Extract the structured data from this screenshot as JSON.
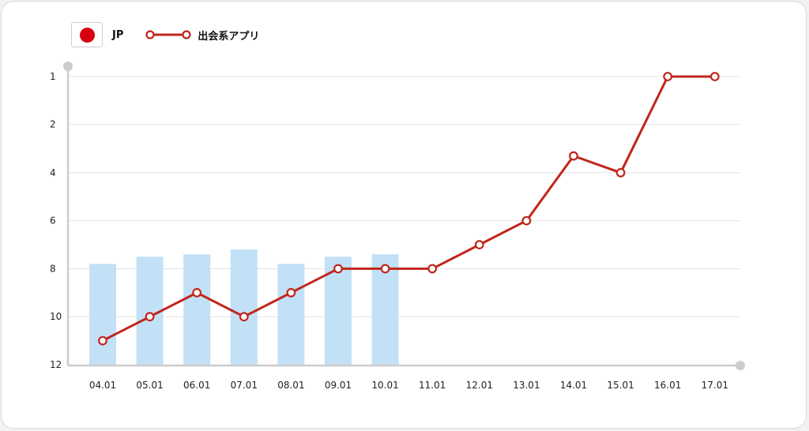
{
  "legend": {
    "region_label": "JP",
    "series_label": "出会系アプリ"
  },
  "colors": {
    "line": "#c0261b",
    "bar": "#c2e1f7",
    "grid": "#e3e3e3",
    "axis": "#cccccc",
    "flag_red": "#d7000f"
  },
  "chart_data": {
    "type": "line",
    "title": "",
    "xlabel": "",
    "ylabel": "",
    "y_inverted": true,
    "ylim": [
      1,
      12
    ],
    "y_ticks": [
      1,
      2,
      4,
      6,
      8,
      10,
      12
    ],
    "categories": [
      "04.01",
      "05.01",
      "06.01",
      "07.01",
      "08.01",
      "09.01",
      "10.01",
      "11.01",
      "12.01",
      "13.01",
      "14.01",
      "15.01",
      "16.01",
      "17.01"
    ],
    "series": [
      {
        "name": "出会系アプリ",
        "type": "line",
        "values": [
          11,
          10,
          9,
          10,
          9,
          8,
          8,
          8,
          7,
          6,
          3.3,
          4,
          1,
          1
        ]
      },
      {
        "type": "bar",
        "values": [
          7.8,
          7.5,
          7.4,
          7.2,
          7.8,
          7.5,
          7.4,
          null,
          null,
          null,
          null,
          null,
          null,
          null
        ]
      }
    ],
    "grid": true
  }
}
